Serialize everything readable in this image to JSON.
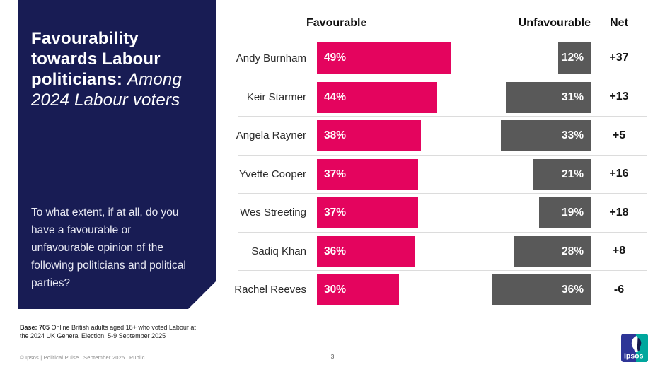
{
  "colors": {
    "panel_navy": "#181c54",
    "favourable_pink": "#e4045e",
    "unfavourable_grey": "#595959",
    "separator_grey": "#dcdcdc",
    "logo_blue": "#2e3597",
    "logo_teal": "#00a79d"
  },
  "sidebar": {
    "title_bold": "Favourability towards Labour politicians:",
    "title_italic": "Among 2024 Labour voters",
    "question": "To what extent, if at all, do you have a favourable or unfavourable opinion of the following politicians and political parties?"
  },
  "chart_data": {
    "type": "bar",
    "orientation": "horizontal",
    "title": "Favourability towards Labour politicians: Among 2024 Labour voters",
    "columns": {
      "favourable": "Favourable",
      "unfavourable": "Unfavourable",
      "net": "Net"
    },
    "categories": [
      "Andy Burnham",
      "Keir Starmer",
      "Angela Rayner",
      "Yvette Cooper",
      "Wes Streeting",
      "Sadiq Khan",
      "Rachel Reeves"
    ],
    "series": [
      {
        "name": "Favourable",
        "color": "#e4045e",
        "values": [
          49,
          44,
          38,
          37,
          37,
          36,
          30
        ]
      },
      {
        "name": "Unfavourable",
        "color": "#595959",
        "values": [
          12,
          31,
          33,
          21,
          19,
          28,
          36
        ]
      }
    ],
    "net": [
      "+37",
      "+13",
      "+5",
      "+16",
      "+18",
      "+8",
      "-6"
    ],
    "value_suffix": "%",
    "value_range": [
      0,
      50
    ],
    "grid": false,
    "legend_position": "column-headers"
  },
  "footer": {
    "base_bold": "Base: 705",
    "base_rest": " Online British adults aged 18+ who voted Labour at the 2024 UK General Election,  5-9 September 2025",
    "copyright": "© Ipsos | Political Pulse | September 2025 | Public",
    "page_number": "3",
    "logo_text": "Ipsos"
  }
}
